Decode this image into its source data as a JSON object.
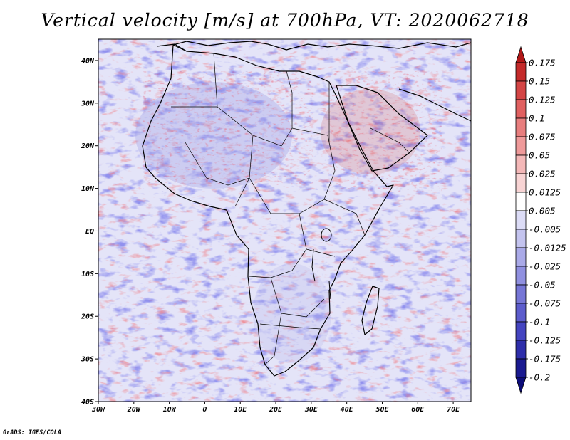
{
  "title": "Vertical velocity [m/s] at 700hPa, VT: 2020062718",
  "credit": "GrADS: IGES/COLA",
  "map": {
    "lat_labels": [
      "40N",
      "30N",
      "20N",
      "10N",
      "EQ",
      "10S",
      "20S",
      "30S",
      "40S"
    ],
    "lon_labels": [
      "30W",
      "20W",
      "10W",
      "0",
      "10E",
      "20E",
      "30E",
      "40E",
      "50E",
      "60E",
      "70E"
    ],
    "lat_range": [
      -40,
      45
    ],
    "lon_range": [
      -30,
      75
    ]
  },
  "colorbar": {
    "labels": [
      "0.175",
      "0.15",
      "0.125",
      "0.1",
      "0.075",
      "0.05",
      "0.025",
      "0.0125",
      "0.005",
      "-0.005",
      "-0.0125",
      "-0.025",
      "-0.05",
      "-0.075",
      "-0.1",
      "-0.125",
      "-0.175",
      "-0.2"
    ],
    "colors": [
      "#b01818",
      "#c42a2a",
      "#d44545",
      "#e06060",
      "#e87e7e",
      "#ef9a9a",
      "#f4b8b8",
      "#f8d4d4",
      "#ffffff",
      "#dcdcf6",
      "#c4c4ef",
      "#aaaae8",
      "#9090e0",
      "#7676d6",
      "#5c5ccc",
      "#4444c0",
      "#2e2eaa",
      "#1a1a90",
      "#0c0c78"
    ]
  }
}
